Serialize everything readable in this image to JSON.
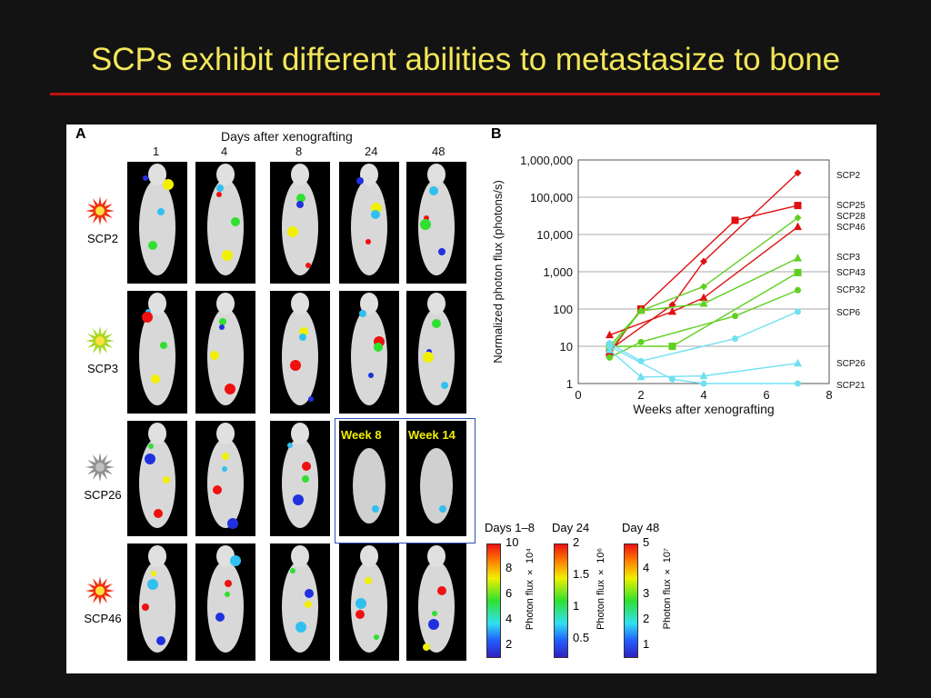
{
  "slide": {
    "title": "SCPs exhibit different abilities to metastasize to bone"
  },
  "panel_a": {
    "label": "A",
    "header": "Days after xenografting",
    "days": [
      "1",
      "4",
      "8",
      "24",
      "48"
    ],
    "rows": [
      {
        "name": "SCP2",
        "star_color": "#f03010"
      },
      {
        "name": "SCP3",
        "star_color": "#a8d820"
      },
      {
        "name": "SCP26",
        "star_color": "#909090"
      },
      {
        "name": "SCP46",
        "star_color": "#f03010"
      }
    ],
    "week_labels": [
      "Week 8",
      "Week 14"
    ]
  },
  "colorbars": [
    {
      "title": "Days 1–8",
      "axis": "Photon flux × 10⁴",
      "ticks": [
        "10",
        "8",
        "6",
        "4",
        "2"
      ]
    },
    {
      "title": "Day 24",
      "axis": "Photon flux × 10⁶",
      "ticks": [
        "2",
        "1.5",
        "1",
        "0.5"
      ]
    },
    {
      "title": "Day 48",
      "axis": "Photon flux × 10⁷",
      "ticks": [
        "5",
        "4",
        "3",
        "2",
        "1"
      ]
    }
  ],
  "chart_data": {
    "panel_label": "B",
    "type": "line",
    "xlabel": "Weeks after xenografting",
    "ylabel": "Normalized photon flux (photons/s)",
    "xlim": [
      0,
      8
    ],
    "ylim": [
      1,
      1000000
    ],
    "yscale": "log",
    "xticks": [
      "0",
      "2",
      "4",
      "6",
      "8"
    ],
    "yticks": [
      "1",
      "10",
      "100",
      "1,000",
      "10,000",
      "100,000",
      "1,000,000"
    ],
    "grid": "horizontal",
    "series": [
      {
        "name": "SCP2",
        "color": "#e01010",
        "marker": "diamond",
        "x": [
          1,
          3,
          4,
          7
        ],
        "y": [
          8,
          130,
          1900,
          450000
        ]
      },
      {
        "name": "SCP25",
        "color": "#e01010",
        "marker": "square",
        "x": [
          1,
          2,
          5,
          7
        ],
        "y": [
          6.5,
          100,
          24000,
          60000
        ]
      },
      {
        "name": "SCP28",
        "color": "#60d020",
        "marker": "diamond",
        "x": [
          1,
          2,
          4,
          7
        ],
        "y": [
          10,
          90,
          400,
          28000
        ]
      },
      {
        "name": "SCP46",
        "color": "#e01010",
        "marker": "triangle",
        "x": [
          1,
          3,
          4,
          7
        ],
        "y": [
          20,
          85,
          200,
          16000
        ]
      },
      {
        "name": "SCP3",
        "color": "#60d020",
        "marker": "triangle",
        "x": [
          1,
          2,
          4,
          7
        ],
        "y": [
          8,
          90,
          140,
          2300
        ]
      },
      {
        "name": "SCP43",
        "color": "#60d020",
        "marker": "square",
        "x": [
          1,
          3,
          7
        ],
        "y": [
          10,
          10,
          950
        ]
      },
      {
        "name": "SCP32",
        "color": "#60d020",
        "marker": "circle",
        "x": [
          1,
          2,
          5,
          7
        ],
        "y": [
          5,
          13,
          65,
          320
        ]
      },
      {
        "name": "SCP6",
        "color": "#70e0f0",
        "marker": "circle",
        "x": [
          1,
          2,
          5,
          7
        ],
        "y": [
          12,
          4,
          16,
          85
        ]
      },
      {
        "name": "SCP26",
        "color": "#70e0f0",
        "marker": "triangle",
        "x": [
          1,
          2,
          4,
          7
        ],
        "y": [
          8,
          1.5,
          1.6,
          3.5
        ]
      },
      {
        "name": "SCP21",
        "color": "#70e0f0",
        "marker": "circle",
        "x": [
          1,
          3,
          4,
          7
        ],
        "y": [
          10,
          1.3,
          1,
          1
        ]
      }
    ]
  }
}
